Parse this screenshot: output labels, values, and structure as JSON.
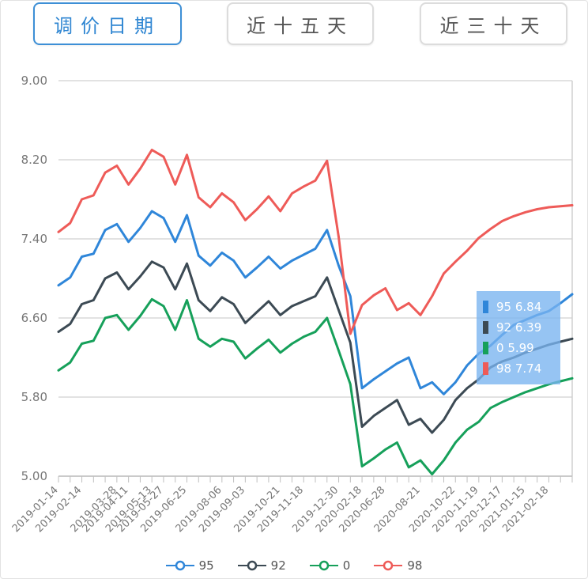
{
  "tabs": [
    {
      "label": "调价日期",
      "active": true
    },
    {
      "label": "近十五天",
      "active": false
    },
    {
      "label": "近三十天",
      "active": false
    }
  ],
  "chart_data": {
    "type": "line",
    "x": [
      "2019-01-14",
      "2019-01-28",
      "2019-02-14",
      "2019-02-28",
      "2019-03-14",
      "2019-03-28",
      "2019-04-11",
      "2019-04-25",
      "2019-05-13",
      "2019-05-27",
      "2019-06-11",
      "2019-06-25",
      "2019-07-09",
      "2019-07-23",
      "2019-08-06",
      "2019-08-20",
      "2019-09-03",
      "2019-09-17",
      "2019-10-09",
      "2019-10-21",
      "2019-11-04",
      "2019-11-18",
      "2019-12-02",
      "2019-12-16",
      "2019-12-30",
      "2020-01-14",
      "2020-02-18",
      "2020-03-17",
      "2020-06-28",
      "2020-07-10",
      "2020-08-07",
      "2020-08-21",
      "2020-09-19",
      "2020-10-09",
      "2020-10-22",
      "2020-11-05",
      "2020-11-19",
      "2020-12-04",
      "2020-12-17",
      "2020-12-31",
      "2021-01-15",
      "2021-01-29",
      "2021-02-18",
      "2021-03-03",
      "2021-03-17"
    ],
    "x_tick_labels": [
      "2019-01-14",
      "2019-02-14",
      "2019-03-28",
      "2019-04-11",
      "2019-05-13",
      "2019-05-27",
      "2019-06-25",
      "2019-08-06",
      "2019-09-03",
      "2019-10-21",
      "2019-11-18",
      "2019-12-30",
      "2020-02-18",
      "2020-06-28",
      "2020-08-21",
      "2020-10-22",
      "2020-11-19",
      "2020-12-17",
      "2021-01-15",
      "2021-02-18"
    ],
    "ylim": [
      5.0,
      9.0
    ],
    "y_ticks": [
      "5.00",
      "5.80",
      "6.60",
      "7.40",
      "8.20",
      "9.00"
    ],
    "grid": true,
    "legend_position": "bottom",
    "series": [
      {
        "name": "95",
        "color": "#2f86d9",
        "values": [
          6.93,
          7.01,
          7.22,
          7.25,
          7.49,
          7.55,
          7.37,
          7.51,
          7.68,
          7.61,
          7.37,
          7.64,
          7.23,
          7.13,
          7.26,
          7.18,
          7.01,
          7.11,
          7.22,
          7.1,
          7.18,
          7.24,
          7.3,
          7.49,
          7.13,
          6.82,
          5.89,
          5.98,
          6.06,
          6.14,
          6.2,
          5.89,
          5.95,
          5.83,
          5.95,
          6.12,
          6.24,
          6.32,
          6.43,
          6.53,
          6.58,
          6.63,
          6.67,
          6.75,
          6.84
        ]
      },
      {
        "name": "92",
        "color": "#3c4a54",
        "values": [
          6.46,
          6.54,
          6.74,
          6.78,
          7.0,
          7.06,
          6.89,
          7.02,
          7.17,
          7.11,
          6.89,
          7.15,
          6.78,
          6.67,
          6.81,
          6.74,
          6.55,
          6.66,
          6.77,
          6.63,
          6.72,
          6.77,
          6.82,
          7.01,
          6.68,
          6.35,
          5.5,
          5.61,
          5.69,
          5.77,
          5.52,
          5.58,
          5.44,
          5.57,
          5.77,
          5.89,
          5.98,
          6.1,
          6.16,
          6.2,
          6.25,
          6.29,
          6.33,
          6.36,
          6.39
        ]
      },
      {
        "name": "0",
        "color": "#16a05a",
        "values": [
          6.07,
          6.15,
          6.34,
          6.37,
          6.6,
          6.63,
          6.48,
          6.62,
          6.79,
          6.72,
          6.48,
          6.78,
          6.39,
          6.31,
          6.39,
          6.36,
          6.19,
          6.29,
          6.38,
          6.25,
          6.34,
          6.41,
          6.46,
          6.6,
          6.27,
          5.93,
          5.1,
          5.18,
          5.27,
          5.34,
          5.09,
          5.16,
          5.02,
          5.16,
          5.34,
          5.47,
          5.55,
          5.69,
          5.75,
          5.8,
          5.85,
          5.89,
          5.93,
          5.96,
          5.99
        ]
      },
      {
        "name": "98",
        "color": "#ee5b58",
        "values": [
          7.47,
          7.56,
          7.8,
          7.84,
          8.07,
          8.14,
          7.95,
          8.11,
          8.3,
          8.23,
          7.95,
          8.25,
          7.82,
          7.72,
          7.86,
          7.77,
          7.59,
          7.7,
          7.83,
          7.68,
          7.86,
          7.93,
          7.99,
          8.19,
          7.42,
          6.44,
          6.73,
          6.83,
          6.9,
          6.68,
          6.75,
          6.63,
          6.82,
          7.05,
          7.17,
          7.28,
          7.41,
          7.5,
          7.58,
          7.63,
          7.67,
          7.7,
          7.72,
          7.73,
          7.74
        ]
      }
    ]
  },
  "tooltip": {
    "rows": [
      {
        "name": "95",
        "value": "6.84",
        "color": "#2f86d9"
      },
      {
        "name": "92",
        "value": "6.39",
        "color": "#3c4a54"
      },
      {
        "name": "0",
        "value": "5.99",
        "color": "#16a05a"
      },
      {
        "name": "98",
        "value": "7.74",
        "color": "#ee5b58"
      }
    ]
  }
}
